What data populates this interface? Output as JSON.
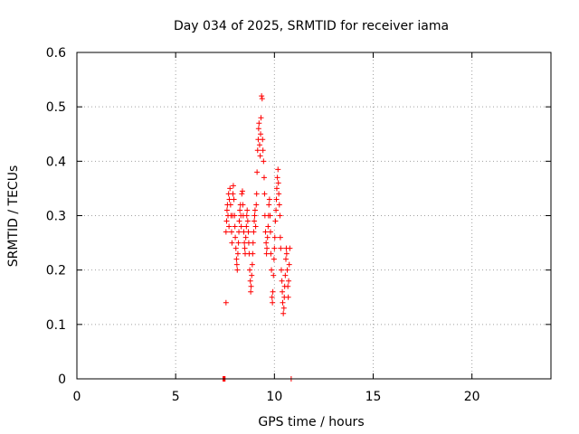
{
  "chart_data": {
    "type": "scatter",
    "title": "Day 034 of 2025, SRMTID for receiver iama",
    "xlabel": "GPS time / hours",
    "ylabel": "SRMTID / TECUs",
    "xlim": [
      0,
      24
    ],
    "ylim": [
      0,
      0.6
    ],
    "grid": true,
    "marker": "+",
    "marker_color": "#ff0000",
    "xticks": [
      0,
      5,
      10,
      15,
      20
    ],
    "xtick_labels": [
      "0",
      "5",
      "10",
      "15",
      "20"
    ],
    "yticks": [
      0,
      0.1,
      0.2,
      0.3,
      0.4,
      0.5,
      0.6
    ],
    "ytick_labels": [
      "0",
      "0.1",
      "0.2",
      "0.3",
      "0.4",
      "0.5",
      "0.6"
    ],
    "series": [
      {
        "points": [
          [
            7.4,
            0.0
          ],
          [
            7.42,
            0.0
          ],
          [
            7.45,
            0.0
          ],
          [
            7.48,
            0.0
          ],
          [
            7.5,
            0.0
          ],
          [
            10.85,
            0.0
          ],
          [
            7.55,
            0.14
          ],
          [
            7.55,
            0.27
          ],
          [
            7.58,
            0.29
          ],
          [
            7.6,
            0.31
          ],
          [
            7.62,
            0.32
          ],
          [
            7.65,
            0.3
          ],
          [
            7.68,
            0.34
          ],
          [
            7.7,
            0.28
          ],
          [
            7.72,
            0.33
          ],
          [
            7.75,
            0.35
          ],
          [
            7.78,
            0.32
          ],
          [
            7.8,
            0.3
          ],
          [
            7.83,
            0.27
          ],
          [
            7.85,
            0.25
          ],
          [
            7.88,
            0.3
          ],
          [
            7.9,
            0.34
          ],
          [
            7.92,
            0.355
          ],
          [
            7.95,
            0.33
          ],
          [
            7.98,
            0.3
          ],
          [
            8.0,
            0.28
          ],
          [
            8.02,
            0.26
          ],
          [
            8.05,
            0.24
          ],
          [
            8.08,
            0.22
          ],
          [
            8.1,
            0.21
          ],
          [
            8.12,
            0.2
          ],
          [
            8.15,
            0.23
          ],
          [
            8.18,
            0.25
          ],
          [
            8.2,
            0.27
          ],
          [
            8.22,
            0.29
          ],
          [
            8.25,
            0.31
          ],
          [
            8.28,
            0.32
          ],
          [
            8.3,
            0.3
          ],
          [
            8.32,
            0.28
          ],
          [
            8.35,
            0.34
          ],
          [
            8.38,
            0.345
          ],
          [
            8.4,
            0.32
          ],
          [
            8.42,
            0.3
          ],
          [
            8.45,
            0.27
          ],
          [
            8.48,
            0.25
          ],
          [
            8.5,
            0.24
          ],
          [
            8.52,
            0.23
          ],
          [
            8.55,
            0.26
          ],
          [
            8.58,
            0.28
          ],
          [
            8.6,
            0.3
          ],
          [
            8.62,
            0.31
          ],
          [
            8.65,
            0.29
          ],
          [
            8.68,
            0.27
          ],
          [
            8.7,
            0.25
          ],
          [
            8.72,
            0.23
          ],
          [
            8.75,
            0.2
          ],
          [
            8.78,
            0.18
          ],
          [
            8.8,
            0.16
          ],
          [
            8.82,
            0.17
          ],
          [
            8.85,
            0.19
          ],
          [
            8.88,
            0.21
          ],
          [
            8.9,
            0.23
          ],
          [
            8.92,
            0.25
          ],
          [
            8.95,
            0.27
          ],
          [
            8.98,
            0.29
          ],
          [
            9.0,
            0.3
          ],
          [
            9.02,
            0.31
          ],
          [
            9.05,
            0.28
          ],
          [
            9.08,
            0.32
          ],
          [
            9.1,
            0.34
          ],
          [
            9.12,
            0.38
          ],
          [
            9.15,
            0.42
          ],
          [
            9.18,
            0.44
          ],
          [
            9.2,
            0.46
          ],
          [
            9.22,
            0.47
          ],
          [
            9.25,
            0.43
          ],
          [
            9.28,
            0.41
          ],
          [
            9.3,
            0.45
          ],
          [
            9.32,
            0.48
          ],
          [
            9.35,
            0.52
          ],
          [
            9.38,
            0.515
          ],
          [
            9.4,
            0.44
          ],
          [
            9.42,
            0.42
          ],
          [
            9.45,
            0.4
          ],
          [
            9.48,
            0.37
          ],
          [
            9.5,
            0.34
          ],
          [
            9.52,
            0.3
          ],
          [
            9.55,
            0.27
          ],
          [
            9.58,
            0.25
          ],
          [
            9.6,
            0.23
          ],
          [
            9.62,
            0.24
          ],
          [
            9.65,
            0.26
          ],
          [
            9.68,
            0.28
          ],
          [
            9.7,
            0.3
          ],
          [
            9.72,
            0.32
          ],
          [
            9.75,
            0.33
          ],
          [
            9.78,
            0.3
          ],
          [
            9.8,
            0.27
          ],
          [
            9.82,
            0.23
          ],
          [
            9.85,
            0.2
          ],
          [
            9.88,
            0.15
          ],
          [
            9.9,
            0.14
          ],
          [
            9.92,
            0.16
          ],
          [
            9.95,
            0.19
          ],
          [
            9.98,
            0.22
          ],
          [
            10.0,
            0.24
          ],
          [
            10.02,
            0.26
          ],
          [
            10.05,
            0.29
          ],
          [
            10.08,
            0.31
          ],
          [
            10.1,
            0.33
          ],
          [
            10.12,
            0.35
          ],
          [
            10.15,
            0.37
          ],
          [
            10.18,
            0.385
          ],
          [
            10.2,
            0.36
          ],
          [
            10.22,
            0.34
          ],
          [
            10.25,
            0.32
          ],
          [
            10.28,
            0.3
          ],
          [
            10.3,
            0.26
          ],
          [
            10.32,
            0.24
          ],
          [
            10.35,
            0.2
          ],
          [
            10.38,
            0.18
          ],
          [
            10.4,
            0.16
          ],
          [
            10.42,
            0.14
          ],
          [
            10.45,
            0.12
          ],
          [
            10.48,
            0.13
          ],
          [
            10.5,
            0.15
          ],
          [
            10.52,
            0.17
          ],
          [
            10.55,
            0.19
          ],
          [
            10.58,
            0.22
          ],
          [
            10.6,
            0.24
          ],
          [
            10.62,
            0.23
          ],
          [
            10.65,
            0.2
          ],
          [
            10.68,
            0.17
          ],
          [
            10.7,
            0.15
          ],
          [
            10.72,
            0.18
          ],
          [
            10.75,
            0.21
          ],
          [
            10.78,
            0.24
          ]
        ]
      }
    ]
  }
}
